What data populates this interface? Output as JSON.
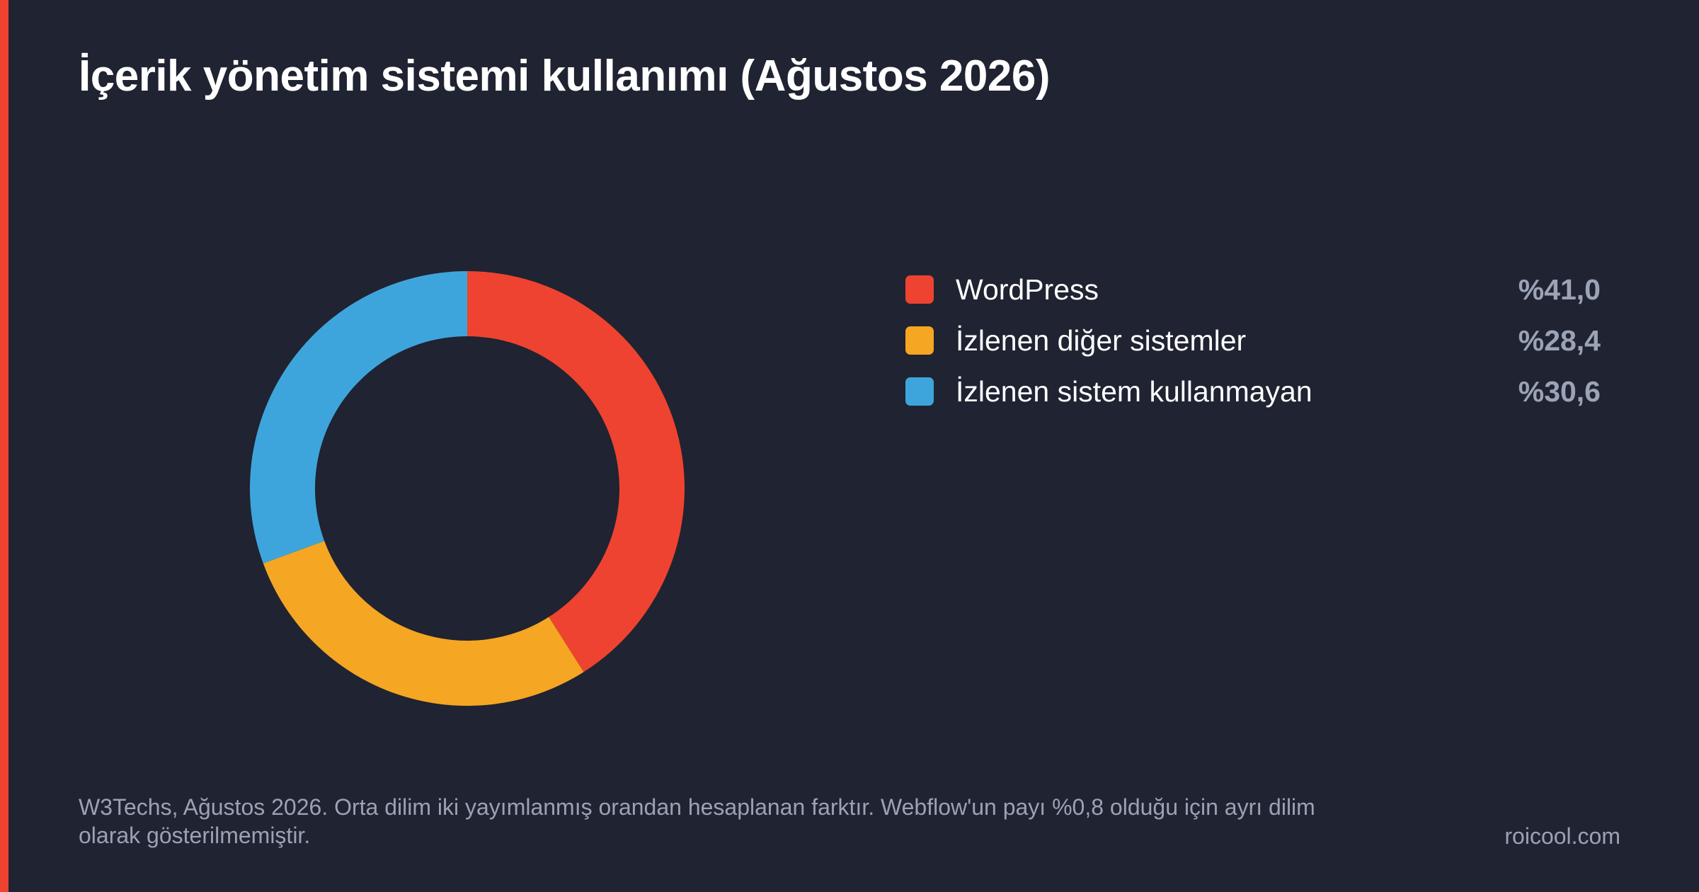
{
  "chart_data": {
    "type": "pie",
    "title": "İçerik yönetim sistemi kullanımı (Ağustos 2026)",
    "donut": true,
    "categories": [
      "WordPress",
      "İzlenen diğer sistemler",
      "İzlenen sistem kullanmayan"
    ],
    "values": [
      41.0,
      28.4,
      30.6
    ],
    "value_labels": [
      "%41,0",
      "%28,4",
      "%30,6"
    ],
    "colors": [
      "#ee4330",
      "#f5a623",
      "#3ea5dc"
    ],
    "legend_placement": "right",
    "grid": false
  },
  "footer": {
    "source_note": "W3Techs, Ağustos 2026. Orta dilim iki yayımlanmış orandan hesaplanan farktır. Webflow'un payı %0,8 olduğu için ayrı dilim olarak gösterilmemiştir.",
    "site": "roicool.com"
  },
  "colors": {
    "background": "#202331",
    "accent": "#ee4330",
    "title_text": "#ffffff",
    "muted_text": "#9aa2b4"
  }
}
